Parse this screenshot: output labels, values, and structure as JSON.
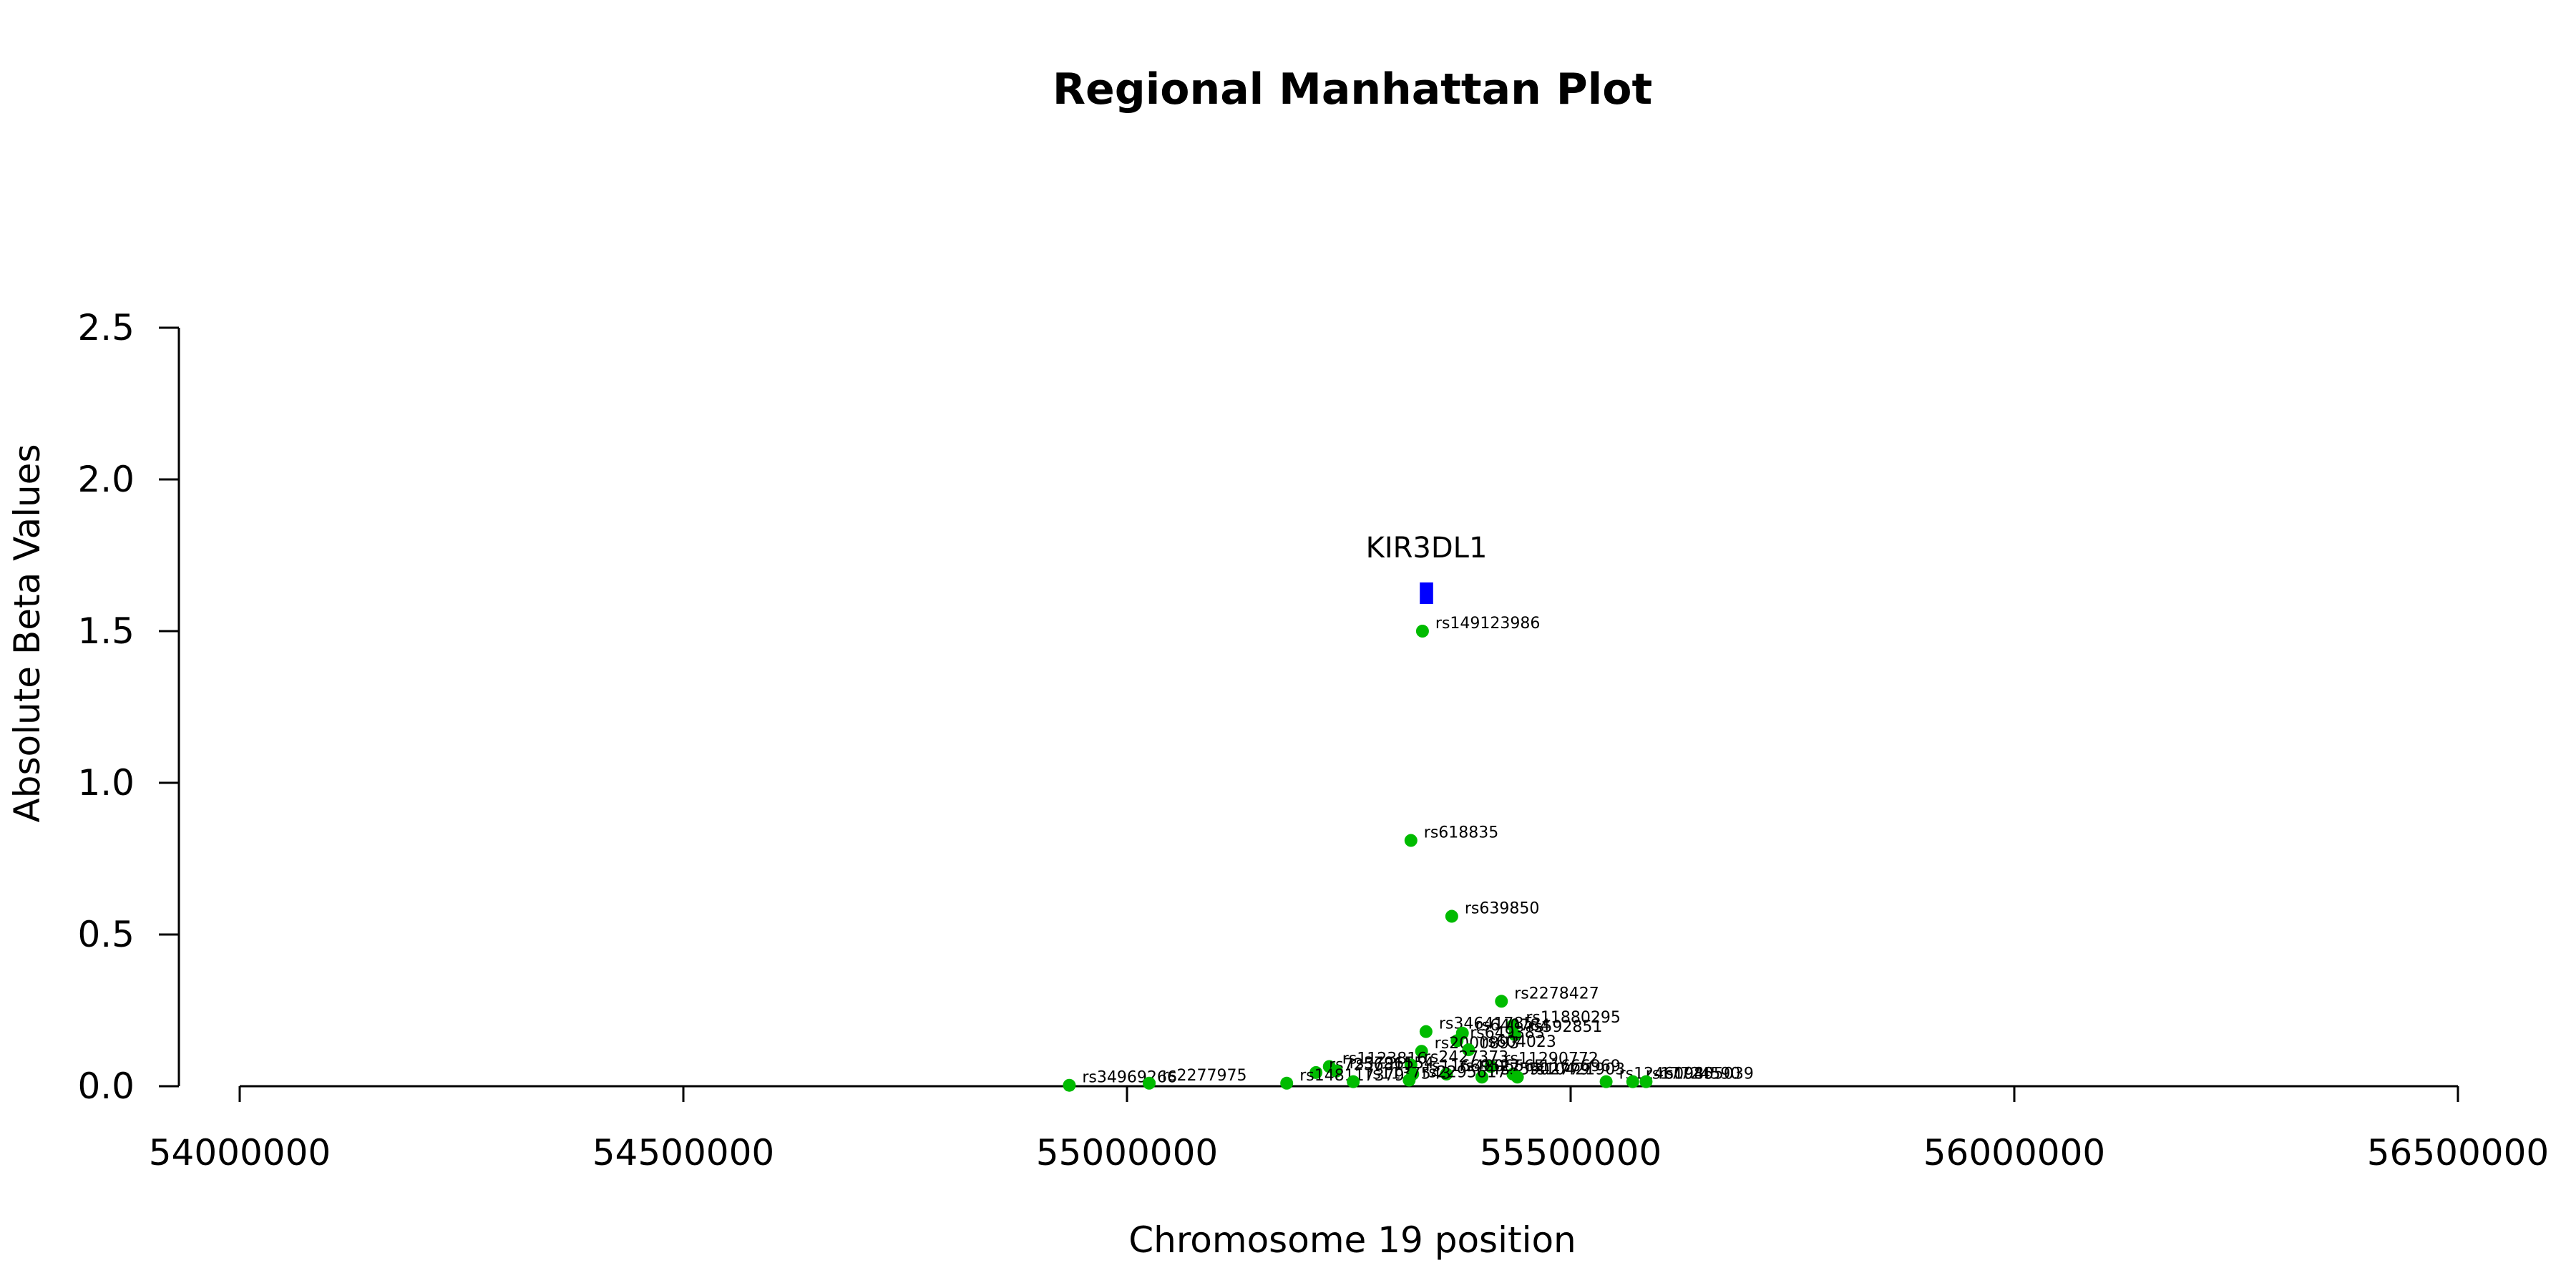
{
  "chart_data": {
    "type": "scatter",
    "title": "Regional Manhattan Plot",
    "xlabel": "Chromosome 19 position",
    "ylabel": "Absolute Beta Values",
    "xlim": [
      54000000,
      56500000
    ],
    "ylim": [
      0,
      2.5
    ],
    "x_ticks": [
      54000000,
      54500000,
      55000000,
      55500000,
      56000000,
      56500000
    ],
    "x_tick_labels": [
      "54000000",
      "54500000",
      "55000000",
      "55500000",
      "56000000",
      "56500000"
    ],
    "y_ticks": [
      0,
      0.5,
      1,
      1.5,
      2,
      2.5
    ],
    "y_tick_labels": [
      "0.0",
      "0.5",
      "1.0",
      "1.5",
      "2.0",
      "2.5"
    ],
    "grid": false,
    "point_color": "#00bb00",
    "gene_color": "#0000ff",
    "gene": {
      "name": "KIR3DL1",
      "start": 55330000,
      "end": 55345000,
      "y": 1.625
    },
    "points": [
      {
        "name": "rs149123986",
        "x": 55333000,
        "y": 1.5
      },
      {
        "name": "rs618835",
        "x": 55320000,
        "y": 0.81
      },
      {
        "name": "rs639850",
        "x": 55366000,
        "y": 0.56
      },
      {
        "name": "rs2278427",
        "x": 55422000,
        "y": 0.28
      },
      {
        "name": "rs11880295",
        "x": 55435000,
        "y": 0.2
      },
      {
        "name": "rs34641785",
        "x": 55337000,
        "y": 0.18
      },
      {
        "name": "rs640784",
        "x": 55378000,
        "y": 0.175
      },
      {
        "name": "rs592851",
        "x": 55437000,
        "y": 0.17
      },
      {
        "name": "rs649383",
        "x": 55372000,
        "y": 0.15
      },
      {
        "name": "rs2000893",
        "x": 55332000,
        "y": 0.115
      },
      {
        "name": "rs604023",
        "x": 55385000,
        "y": 0.12
      },
      {
        "name": "rs1123816",
        "x": 55228000,
        "y": 0.065
      },
      {
        "name": "rs2427373",
        "x": 55320000,
        "y": 0.07
      },
      {
        "name": "rs11290772",
        "x": 55410000,
        "y": 0.065
      },
      {
        "name": "rs11666969",
        "x": 55435000,
        "y": 0.04
      },
      {
        "name": "rs7256811",
        "x": 55213000,
        "y": 0.045
      },
      {
        "name": "rs3796554",
        "x": 55236000,
        "y": 0.05
      },
      {
        "name": "rs11669527",
        "x": 55322000,
        "y": 0.04
      },
      {
        "name": "rs4806565",
        "x": 55360000,
        "y": 0.04
      },
      {
        "name": "rs35902779",
        "x": 55400000,
        "y": 0.03
      },
      {
        "name": "rs10421903",
        "x": 55440000,
        "y": 0.03
      },
      {
        "name": "rs148117379",
        "x": 55180000,
        "y": 0.01
      },
      {
        "name": "rs1137543",
        "x": 55255000,
        "y": 0.015
      },
      {
        "name": "rs2295617",
        "x": 55318000,
        "y": 0.02
      },
      {
        "name": "rs12460985",
        "x": 55540000,
        "y": 0.015
      },
      {
        "name": "rs17724590",
        "x": 55570000,
        "y": 0.015
      },
      {
        "name": "rs10405039",
        "x": 55585000,
        "y": 0.015
      },
      {
        "name": "rs34969266",
        "x": 54935000,
        "y": 0.003
      },
      {
        "name": "rs2277975",
        "x": 55025000,
        "y": 0.01
      }
    ]
  }
}
